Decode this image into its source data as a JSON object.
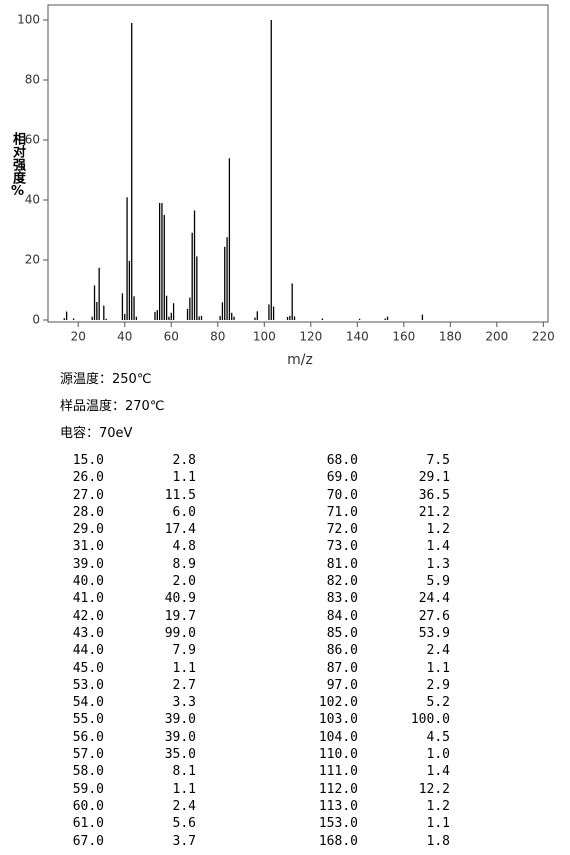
{
  "chart_data": {
    "type": "bar",
    "x_label": "m/z",
    "y_label": "相对强度%",
    "x": [
      14,
      15,
      18,
      26,
      27,
      28,
      29,
      31,
      32,
      39,
      40,
      41,
      42,
      43,
      44,
      45,
      53,
      54,
      55,
      56,
      57,
      58,
      59,
      60,
      61,
      67,
      68,
      69,
      70,
      71,
      72,
      73,
      81,
      82,
      83,
      84,
      85,
      86,
      87,
      96,
      97,
      102,
      103,
      104,
      110,
      111,
      112,
      113,
      125,
      141,
      152,
      153,
      168
    ],
    "values": [
      0.6,
      2.8,
      0.5,
      1.1,
      11.5,
      6.0,
      17.4,
      4.8,
      0.4,
      8.9,
      2.0,
      40.9,
      19.7,
      99.0,
      7.9,
      1.1,
      2.7,
      3.3,
      39.0,
      39.0,
      35.0,
      8.1,
      1.1,
      2.4,
      5.6,
      3.7,
      7.5,
      29.1,
      36.5,
      21.2,
      1.2,
      1.4,
      1.3,
      5.9,
      24.4,
      27.6,
      53.9,
      2.4,
      1.1,
      0.8,
      2.9,
      5.2,
      100,
      4.5,
      1.0,
      1.4,
      12.2,
      1.2,
      0.5,
      0.4,
      0.5,
      1.1,
      1.8
    ],
    "color": "#000000",
    "xlim": [
      7,
      222
    ],
    "xticks": [
      20,
      40,
      60,
      80,
      100,
      120,
      140,
      160,
      180,
      200,
      220
    ],
    "ylim": [
      0,
      105
    ],
    "yticks": [
      0,
      20,
      40,
      60,
      80,
      100
    ]
  },
  "conditions": [
    "源温度：250℃",
    "样品温度：270℃",
    "电容：70eV"
  ],
  "table": {
    "rows": [
      [
        "15.0",
        "2.8",
        "68.0",
        "7.5"
      ],
      [
        "26.0",
        "1.1",
        "69.0",
        "29.1"
      ],
      [
        "27.0",
        "11.5",
        "70.0",
        "36.5"
      ],
      [
        "28.0",
        "6.0",
        "71.0",
        "21.2"
      ],
      [
        "29.0",
        "17.4",
        "72.0",
        "1.2"
      ],
      [
        "31.0",
        "4.8",
        "73.0",
        "1.4"
      ],
      [
        "39.0",
        "8.9",
        "81.0",
        "1.3"
      ],
      [
        "40.0",
        "2.0",
        "82.0",
        "5.9"
      ],
      [
        "41.0",
        "40.9",
        "83.0",
        "24.4"
      ],
      [
        "42.0",
        "19.7",
        "84.0",
        "27.6"
      ],
      [
        "43.0",
        "99.0",
        "85.0",
        "53.9"
      ],
      [
        "44.0",
        "7.9",
        "86.0",
        "2.4"
      ],
      [
        "45.0",
        "1.1",
        "87.0",
        "1.1"
      ],
      [
        "53.0",
        "2.7",
        "97.0",
        "2.9"
      ],
      [
        "54.0",
        "3.3",
        "102.0",
        "5.2"
      ],
      [
        "55.0",
        "39.0",
        "103.0",
        "100.0"
      ],
      [
        "56.0",
        "39.0",
        "104.0",
        "4.5"
      ],
      [
        "57.0",
        "35.0",
        "110.0",
        "1.0"
      ],
      [
        "58.0",
        "8.1",
        "111.0",
        "1.4"
      ],
      [
        "59.0",
        "1.1",
        "112.0",
        "12.2"
      ],
      [
        "60.0",
        "2.4",
        "113.0",
        "1.2"
      ],
      [
        "61.0",
        "5.6",
        "153.0",
        "1.1"
      ],
      [
        "67.0",
        "3.7",
        "168.0",
        "1.8"
      ]
    ]
  }
}
